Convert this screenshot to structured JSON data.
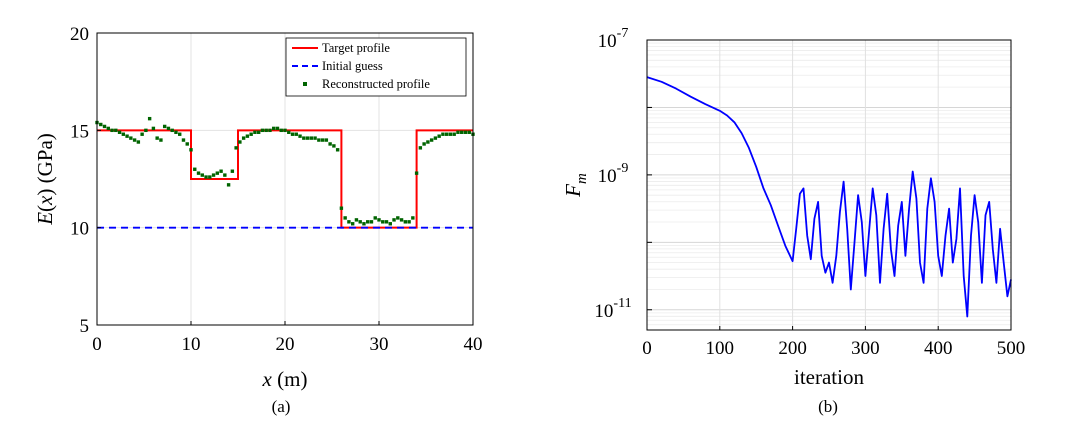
{
  "chart_data": [
    {
      "type": "line",
      "panel_label": "(a)",
      "xlabel": {
        "var": "x",
        "unit": " (m)"
      },
      "ylabel": {
        "var": "E",
        "arg": "x",
        "unit": " (GPa)"
      },
      "xlim": [
        0,
        40
      ],
      "ylim": [
        5,
        20
      ],
      "xticks": [
        "0",
        "10",
        "20",
        "30",
        "40"
      ],
      "yticks": [
        "5",
        "10",
        "15",
        "20"
      ],
      "grid": true,
      "legend_position": "top-right",
      "colors": {
        "target": "#ff0000",
        "initial": "#0000ff",
        "reconstructed": "#006400"
      },
      "series": [
        {
          "name": "Target profile",
          "style": "solid",
          "x": [
            0,
            10,
            10,
            15,
            15,
            26,
            26,
            34,
            34,
            40
          ],
          "y": [
            15,
            15,
            12.5,
            12.5,
            15,
            15,
            10,
            10,
            15,
            15
          ]
        },
        {
          "name": "Initial guess",
          "style": "dashed",
          "x": [
            0,
            40
          ],
          "y": [
            10,
            10
          ]
        },
        {
          "name": "Reconstructed profile",
          "style": "markers",
          "x": [
            0,
            0.4,
            0.8,
            1.2,
            1.6,
            2.0,
            2.4,
            2.8,
            3.2,
            3.6,
            4.0,
            4.4,
            4.8,
            5.2,
            5.6,
            6.0,
            6.4,
            6.8,
            7.2,
            7.6,
            8.0,
            8.4,
            8.8,
            9.2,
            9.6,
            10.0,
            10.4,
            10.8,
            11.2,
            11.6,
            12.0,
            12.4,
            12.8,
            13.2,
            13.6,
            14.0,
            14.4,
            14.8,
            15.2,
            15.6,
            16.0,
            16.4,
            16.8,
            17.2,
            17.6,
            18.0,
            18.4,
            18.8,
            19.2,
            19.6,
            20.0,
            20.4,
            20.8,
            21.2,
            21.6,
            22.0,
            22.4,
            22.8,
            23.2,
            23.6,
            24.0,
            24.4,
            24.8,
            25.2,
            25.6,
            26.0,
            26.4,
            26.8,
            27.2,
            27.6,
            28.0,
            28.4,
            28.8,
            29.2,
            29.6,
            30.0,
            30.4,
            30.8,
            31.2,
            31.6,
            32.0,
            32.4,
            32.8,
            33.2,
            33.6,
            34.0,
            34.4,
            34.8,
            35.2,
            35.6,
            36.0,
            36.4,
            36.8,
            37.2,
            37.6,
            38.0,
            38.4,
            38.8,
            39.2,
            39.6,
            40.0
          ],
          "y": [
            15.4,
            15.3,
            15.2,
            15.1,
            15.0,
            15.0,
            14.9,
            14.8,
            14.7,
            14.6,
            14.5,
            14.4,
            14.8,
            15.0,
            15.6,
            15.1,
            14.6,
            14.5,
            15.2,
            15.1,
            15.0,
            14.9,
            14.8,
            14.5,
            14.3,
            14.0,
            13.0,
            12.8,
            12.7,
            12.6,
            12.6,
            12.7,
            12.8,
            12.9,
            12.7,
            12.2,
            12.9,
            14.1,
            14.4,
            14.6,
            14.7,
            14.8,
            14.9,
            14.9,
            15.0,
            15.0,
            15.0,
            15.1,
            15.1,
            15.0,
            15.0,
            14.9,
            14.8,
            14.8,
            14.7,
            14.6,
            14.6,
            14.6,
            14.6,
            14.5,
            14.5,
            14.5,
            14.3,
            14.2,
            14.0,
            11.0,
            10.5,
            10.3,
            10.2,
            10.4,
            10.3,
            10.2,
            10.3,
            10.3,
            10.5,
            10.4,
            10.3,
            10.3,
            10.2,
            10.4,
            10.5,
            10.4,
            10.3,
            10.3,
            10.5,
            12.8,
            14.1,
            14.3,
            14.4,
            14.5,
            14.6,
            14.7,
            14.8,
            14.8,
            14.8,
            14.8,
            14.9,
            14.9,
            14.9,
            14.9,
            14.8
          ]
        }
      ]
    },
    {
      "type": "line",
      "panel_label": "(b)",
      "xlabel": "iteration",
      "ylabel": {
        "var": "F",
        "sub": "m"
      },
      "xlim": [
        0,
        500
      ],
      "ylim_log10": [
        -11.3,
        -7
      ],
      "yscale": "log",
      "xticks": [
        "0",
        "100",
        "200",
        "300",
        "400",
        "500"
      ],
      "yticks": [
        {
          "base": "10",
          "exp": "-7"
        },
        {
          "base": "10",
          "exp": "-9"
        },
        {
          "base": "10",
          "exp": "-11"
        }
      ],
      "grid": true,
      "colors": {
        "line": "#0000ff"
      },
      "series": [
        {
          "x": [
            0,
            20,
            40,
            60,
            80,
            100,
            110,
            120,
            130,
            140,
            150,
            160,
            170,
            180,
            190,
            200,
            205,
            210,
            215,
            220,
            225,
            230,
            235,
            240,
            245,
            250,
            255,
            260,
            265,
            270,
            275,
            280,
            285,
            290,
            295,
            300,
            305,
            310,
            315,
            320,
            325,
            330,
            335,
            340,
            345,
            350,
            355,
            360,
            365,
            370,
            375,
            380,
            385,
            390,
            395,
            400,
            405,
            410,
            415,
            420,
            425,
            430,
            435,
            440,
            445,
            450,
            455,
            460,
            465,
            470,
            475,
            480,
            485,
            490,
            495,
            500
          ],
          "y_log10": [
            -7.55,
            -7.62,
            -7.72,
            -7.84,
            -7.95,
            -8.05,
            -8.12,
            -8.22,
            -8.38,
            -8.6,
            -8.88,
            -9.2,
            -9.45,
            -9.75,
            -10.05,
            -10.28,
            -9.8,
            -9.28,
            -9.2,
            -9.9,
            -10.25,
            -9.65,
            -9.4,
            -10.2,
            -10.45,
            -10.3,
            -10.6,
            -10.2,
            -9.55,
            -9.1,
            -9.8,
            -10.7,
            -10.0,
            -9.3,
            -9.7,
            -10.5,
            -9.85,
            -9.2,
            -9.6,
            -10.6,
            -9.8,
            -9.28,
            -10.1,
            -10.5,
            -9.75,
            -9.4,
            -10.2,
            -9.5,
            -8.95,
            -9.35,
            -10.3,
            -10.6,
            -9.5,
            -9.05,
            -9.4,
            -10.2,
            -10.5,
            -9.9,
            -9.5,
            -10.3,
            -9.95,
            -9.2,
            -10.5,
            -11.1,
            -9.9,
            -9.3,
            -9.7,
            -10.6,
            -9.6,
            -9.4,
            -10.1,
            -10.6,
            -9.8,
            -10.3,
            -10.8,
            -10.55
          ]
        }
      ]
    }
  ]
}
